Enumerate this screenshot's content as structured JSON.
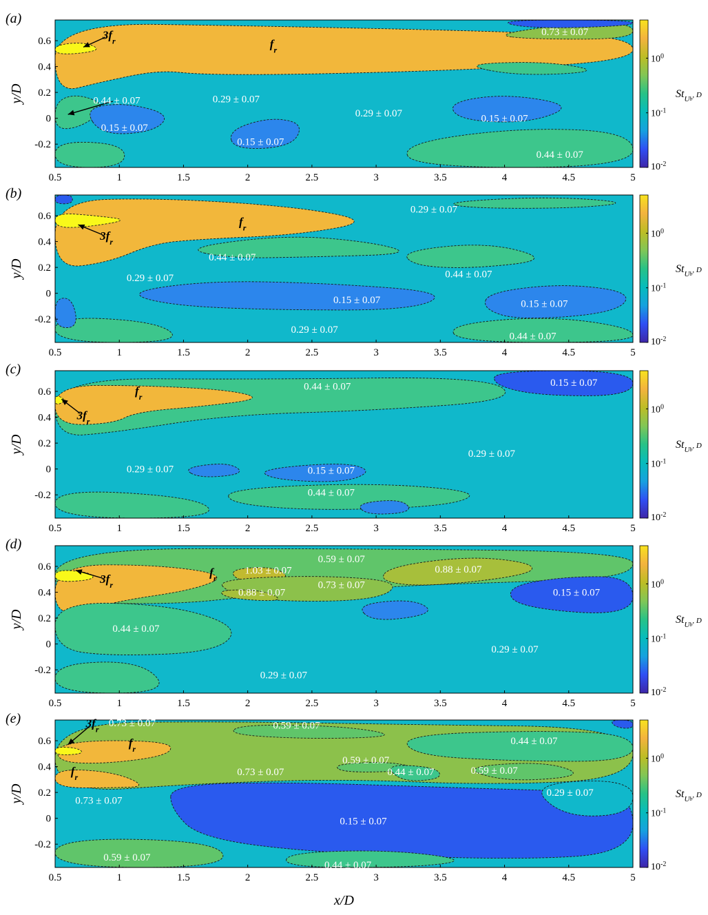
{
  "figure": {
    "x_axis_label": "x/D",
    "y_axis_label": "y/D",
    "colorbar_label_main": "St",
    "colorbar_label_sub": "U",
    "colorbar_label_subsub": "b",
    "colorbar_label_tail": ", D",
    "colorbar_ticks": [
      {
        "base": "10",
        "exp": "0",
        "value": 1
      },
      {
        "base": "10",
        "exp": "-1",
        "value": 0.1
      },
      {
        "base": "10",
        "exp": "-2",
        "value": 0.01
      }
    ],
    "colormap": [
      "#3e26a8",
      "#2f4ff4",
      "#16a1df",
      "#06bcbc",
      "#27c287",
      "#81c656",
      "#bdbd25",
      "#f3b33e",
      "#f8e21e"
    ],
    "zone_colors": {
      "0.15": "#2c86ec",
      "0.29": "#10b8cb",
      "0.44": "#3dc68c",
      "0.59": "#60c56a",
      "0.73": "#8cc14b",
      "0.88": "#a7bf3b",
      "1.03": "#c1ba30",
      "fr": "#f2b73b",
      "3fr": "#f9f81a",
      "dark": "#2a5aee"
    }
  },
  "chart_data": [
    {
      "panel": "(a)",
      "type": "contour",
      "xlim": [
        0.5,
        5
      ],
      "ylim": [
        -0.38,
        0.76
      ],
      "xticks": [
        "0.5",
        "1",
        "1.5",
        "2",
        "2.5",
        "3",
        "3.5",
        "4",
        "4.5",
        "5"
      ],
      "yticks": [
        "0.6",
        "0.4",
        "0.2",
        "0",
        "-0.2"
      ],
      "clim": [
        0.01,
        5
      ],
      "annotations": [
        {
          "text": "3f",
          "sub": "r",
          "x": 0.92,
          "y": 0.64,
          "arrow_to": [
            0.72,
            0.55
          ]
        },
        {
          "text": "f",
          "sub": "r",
          "x": 2.2,
          "y": 0.57
        },
        {
          "text": "0.73 ± 0.07",
          "x": 4.47,
          "y": 0.67
        },
        {
          "text": "0.44 ± 0.07",
          "x": 0.98,
          "y": 0.14,
          "arrow_to": [
            0.6,
            0.03
          ]
        },
        {
          "text": "0.29 ± 0.07",
          "x": 1.91,
          "y": 0.15
        },
        {
          "text": "0.29 ± 0.07",
          "x": 3.02,
          "y": 0.04
        },
        {
          "text": "0.15 ± 0.07",
          "x": 4.0,
          "y": 0.0
        },
        {
          "text": "0.15 ± 0.07",
          "x": 1.04,
          "y": -0.07
        },
        {
          "text": "0.15 ± 0.07",
          "x": 2.1,
          "y": -0.18
        },
        {
          "text": "0.44 ± 0.07",
          "x": 4.43,
          "y": -0.28
        }
      ]
    },
    {
      "panel": "(b)",
      "type": "contour",
      "xlim": [
        0.5,
        5
      ],
      "ylim": [
        -0.38,
        0.76
      ],
      "xticks": [
        "0.5",
        "1",
        "1.5",
        "2",
        "2.5",
        "3",
        "3.5",
        "4",
        "4.5",
        "5"
      ],
      "yticks": [
        "0.6",
        "0.4",
        "0.2",
        "0",
        "-0.2"
      ],
      "clim": [
        0.01,
        5
      ],
      "annotations": [
        {
          "text": "3f",
          "sub": "r",
          "x": 0.9,
          "y": 0.44,
          "arrow_to": [
            0.68,
            0.53
          ]
        },
        {
          "text": "f",
          "sub": "r",
          "x": 1.96,
          "y": 0.55
        },
        {
          "text": "0.29 ± 0.07",
          "x": 3.45,
          "y": 0.65
        },
        {
          "text": "0.44 ± 0.07",
          "x": 1.88,
          "y": 0.28
        },
        {
          "text": "0.44 ± 0.07",
          "x": 3.72,
          "y": 0.15
        },
        {
          "text": "0.29 ± 0.07",
          "x": 1.24,
          "y": 0.12
        },
        {
          "text": "0.15 ± 0.07",
          "x": 2.85,
          "y": -0.05
        },
        {
          "text": "0.15 ± 0.07",
          "x": 4.31,
          "y": -0.08
        },
        {
          "text": "0.29 ± 0.07",
          "x": 2.52,
          "y": -0.28
        },
        {
          "text": "0.44 ± 0.07",
          "x": 4.22,
          "y": -0.33
        }
      ]
    },
    {
      "panel": "(c)",
      "type": "contour",
      "xlim": [
        0.5,
        5
      ],
      "ylim": [
        -0.38,
        0.76
      ],
      "xticks": [
        "0.5",
        "1",
        "1.5",
        "2",
        "2.5",
        "3",
        "3.5",
        "4",
        "4.5",
        "5"
      ],
      "yticks": [
        "0.6",
        "0.4",
        "0.2",
        "0",
        "-0.2"
      ],
      "clim": [
        0.01,
        5
      ],
      "annotations": [
        {
          "text": "f",
          "sub": "r",
          "x": 1.15,
          "y": 0.6
        },
        {
          "text": "3f",
          "sub": "r",
          "x": 0.72,
          "y": 0.41,
          "arrow_to": [
            0.55,
            0.54
          ]
        },
        {
          "text": "0.44 ± 0.07",
          "x": 2.62,
          "y": 0.64
        },
        {
          "text": "0.15 ± 0.07",
          "x": 4.54,
          "y": 0.67
        },
        {
          "text": "0.29 ± 0.07",
          "x": 1.24,
          "y": 0.0
        },
        {
          "text": "0.29 ± 0.07",
          "x": 3.9,
          "y": 0.12
        },
        {
          "text": "0.15 ± 0.07",
          "x": 2.65,
          "y": -0.01
        },
        {
          "text": "0.44 ± 0.07",
          "x": 2.65,
          "y": -0.18
        }
      ]
    },
    {
      "panel": "(d)",
      "type": "contour",
      "xlim": [
        0.5,
        5
      ],
      "ylim": [
        -0.38,
        0.76
      ],
      "xticks": [
        "0.5",
        "1",
        "1.5",
        "2",
        "2.5",
        "3",
        "3.5",
        "4",
        "4.5",
        "5"
      ],
      "yticks": [
        "0.6",
        "0.4",
        "0.2",
        "0",
        "-0.2"
      ],
      "clim": [
        0.01,
        5
      ],
      "annotations": [
        {
          "text": "3f",
          "sub": "r",
          "x": 0.9,
          "y": 0.5,
          "arrow_to": [
            0.66,
            0.57
          ]
        },
        {
          "text": "f",
          "sub": "r",
          "x": 1.73,
          "y": 0.55
        },
        {
          "text": "1.03 ± 0.07",
          "x": 2.16,
          "y": 0.57
        },
        {
          "text": "0.59 ± 0.07",
          "x": 2.73,
          "y": 0.66
        },
        {
          "text": "0.88 ± 0.07",
          "x": 3.64,
          "y": 0.58
        },
        {
          "text": "0.88 ± 0.07",
          "x": 2.11,
          "y": 0.4
        },
        {
          "text": "0.73 ± 0.07",
          "x": 2.73,
          "y": 0.46
        },
        {
          "text": "0.15 ± 0.07",
          "x": 4.56,
          "y": 0.4
        },
        {
          "text": "0.44 ± 0.07",
          "x": 1.13,
          "y": 0.12
        },
        {
          "text": "0.29 ± 0.07",
          "x": 4.08,
          "y": -0.04
        },
        {
          "text": "0.29 ± 0.07",
          "x": 2.28,
          "y": -0.24
        }
      ]
    },
    {
      "panel": "(e)",
      "type": "contour",
      "xlim": [
        0.5,
        5
      ],
      "ylim": [
        -0.38,
        0.76
      ],
      "xticks": [
        "0.5",
        "1",
        "1.5",
        "2",
        "2.5",
        "3",
        "3.5",
        "4",
        "4.5",
        "5"
      ],
      "yticks": [
        "0.6",
        "0.4",
        "0.2",
        "0",
        "-0.2"
      ],
      "clim": [
        0.01,
        5
      ],
      "annotations": [
        {
          "text": "3f",
          "sub": "r",
          "x": 0.79,
          "y": 0.73,
          "arrow_to": [
            0.6,
            0.57
          ]
        },
        {
          "text": "0.73 ± 0.07",
          "x": 1.1,
          "y": 0.74
        },
        {
          "text": "0.59 ± 0.07",
          "x": 2.38,
          "y": 0.72
        },
        {
          "text": "f",
          "sub": "r",
          "x": 1.1,
          "y": 0.58
        },
        {
          "text": "0.44 ± 0.07",
          "x": 4.23,
          "y": 0.6
        },
        {
          "text": "0.59 ± 0.07",
          "x": 2.92,
          "y": 0.45
        },
        {
          "text": "f",
          "sub": "r",
          "x": 0.65,
          "y": 0.36
        },
        {
          "text": "0.73 ± 0.07",
          "x": 2.1,
          "y": 0.36
        },
        {
          "text": "0.44 ± 0.07",
          "x": 3.27,
          "y": 0.36
        },
        {
          "text": "0.59 ± 0.07",
          "x": 3.92,
          "y": 0.37
        },
        {
          "text": "0.73 ± 0.07",
          "x": 0.84,
          "y": 0.14
        },
        {
          "text": "0.29 ± 0.07",
          "x": 4.51,
          "y": 0.2
        },
        {
          "text": "0.15 ± 0.07",
          "x": 2.9,
          "y": -0.02
        },
        {
          "text": "0.59 ± 0.07",
          "x": 1.06,
          "y": -0.3
        },
        {
          "text": "0.44 ± 0.07",
          "x": 2.78,
          "y": -0.36
        }
      ]
    }
  ]
}
